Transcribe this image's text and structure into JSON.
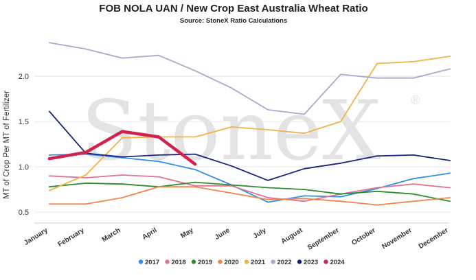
{
  "chart_data": {
    "type": "line",
    "title": "FOB NOLA UAN / New Crop East Australia Wheat Ratio",
    "subtitle": "Source: StoneX Ratio Calculations",
    "xlabel": "",
    "ylabel": "MT of Crop Per MT of Fertilizer",
    "ylim": [
      0.38,
      2.5
    ],
    "yticks": [
      "0.5",
      "1.0",
      "1.5",
      "2.0"
    ],
    "grid": "horizontal",
    "legend_position": "bottom",
    "watermark": "StoneX",
    "categories": [
      "January",
      "February",
      "March",
      "April",
      "May",
      "June",
      "July",
      "August",
      "September",
      "October",
      "November",
      "December"
    ],
    "series": [
      {
        "name": "2017",
        "color": "#2f8fe8",
        "values": [
          1.13,
          1.14,
          1.1,
          1.06,
          0.97,
          0.8,
          0.61,
          0.68,
          0.67,
          0.76,
          0.87,
          0.93
        ]
      },
      {
        "name": "2018",
        "color": "#e0729a",
        "values": [
          0.9,
          0.88,
          0.91,
          0.89,
          0.79,
          0.79,
          0.66,
          0.62,
          0.7,
          0.77,
          0.81,
          0.77
        ]
      },
      {
        "name": "2019",
        "color": "#2e8b2e",
        "values": [
          0.78,
          0.82,
          0.81,
          0.78,
          0.83,
          0.8,
          0.77,
          0.75,
          0.7,
          0.73,
          0.7,
          0.62
        ]
      },
      {
        "name": "2020",
        "color": "#f4844a",
        "values": [
          0.59,
          0.59,
          0.66,
          0.78,
          0.78,
          0.71,
          0.64,
          0.65,
          0.62,
          0.58,
          0.62,
          0.66
        ]
      },
      {
        "name": "2021",
        "color": "#f2b246",
        "values": [
          0.74,
          0.91,
          1.32,
          1.33,
          1.33,
          1.44,
          1.41,
          1.37,
          1.5,
          2.14,
          2.16,
          2.22
        ]
      },
      {
        "name": "2022",
        "color": "#a9a9cf",
        "values": [
          2.37,
          2.3,
          2.2,
          2.23,
          2.06,
          1.87,
          1.63,
          1.58,
          2.02,
          1.98,
          1.98,
          2.08
        ]
      },
      {
        "name": "2023",
        "color": "#1a237e",
        "values": [
          1.61,
          1.15,
          1.11,
          1.13,
          1.14,
          1.01,
          0.85,
          0.98,
          1.04,
          1.12,
          1.13,
          1.07
        ]
      },
      {
        "name": "2024",
        "color": "#d1234d",
        "values": [
          1.09,
          1.16,
          1.39,
          1.33,
          1.03,
          null,
          null,
          null,
          null,
          null,
          null,
          null
        ]
      }
    ]
  }
}
